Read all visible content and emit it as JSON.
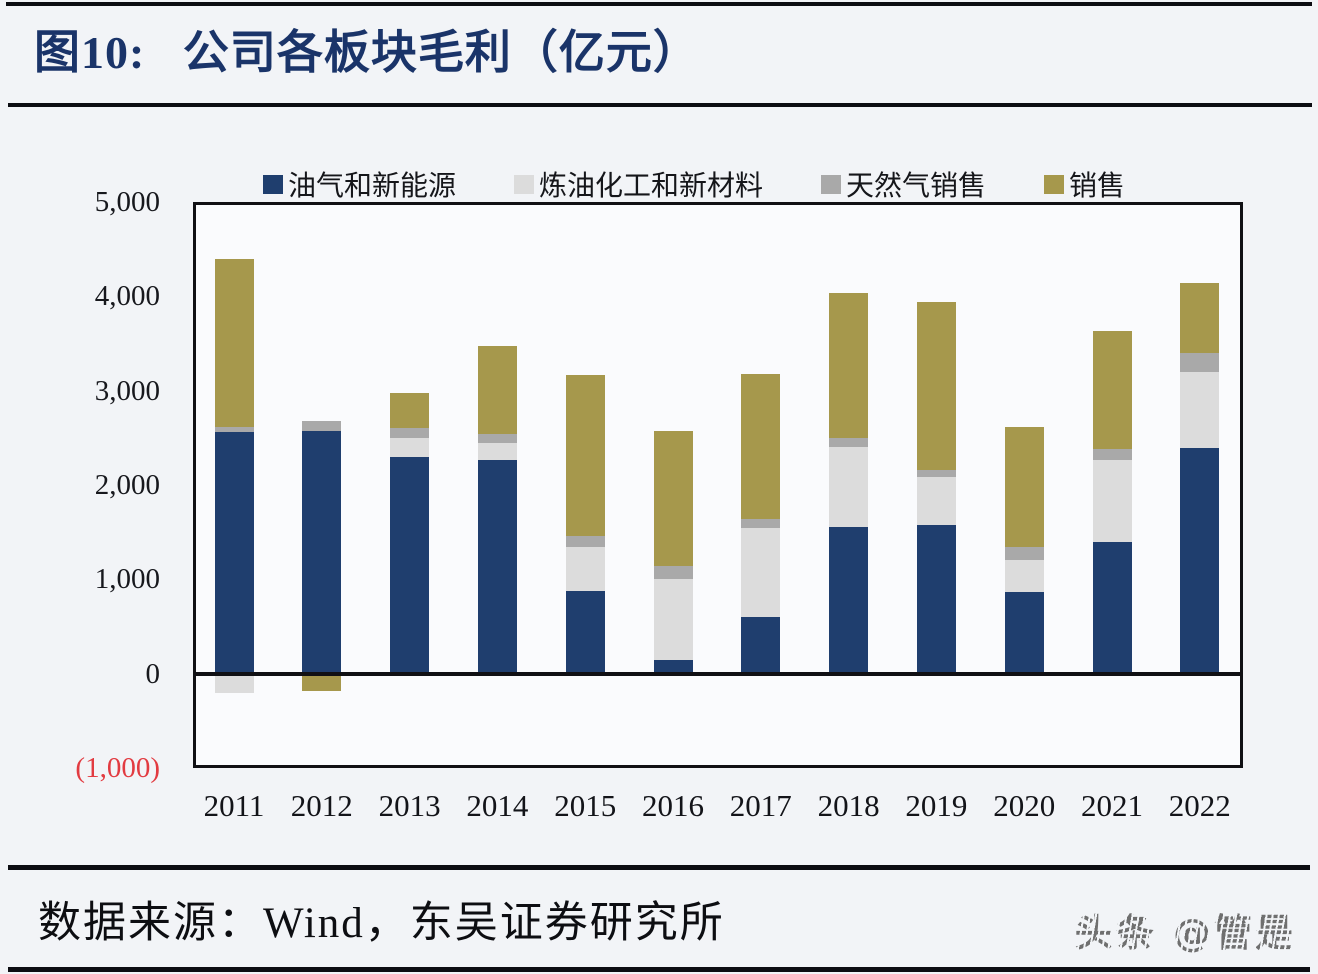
{
  "page": {
    "title": "图10:   公司各板块毛利（亿元）",
    "source_label": "数据来源：Wind，东吴证券研究所",
    "watermark": "头条 @管是"
  },
  "colors": {
    "title_navy": "#1a3469",
    "axis_black": "#101014",
    "negative_tick_red": "#e23b41",
    "page_background": "#f2f4f7",
    "watermark_gray": "#818181"
  },
  "chart_data": {
    "type": "bar",
    "stacked": true,
    "title": "公司各板块毛利（亿元）",
    "unit": "亿元",
    "grid": false,
    "legend_position": "top",
    "ylim": [
      -1000,
      5000
    ],
    "categories": [
      "2011",
      "2012",
      "2013",
      "2014",
      "2015",
      "2016",
      "2017",
      "2018",
      "2019",
      "2020",
      "2021",
      "2022"
    ],
    "series": [
      {
        "name": "油气和新能源",
        "color": "#1f3e6e",
        "textured": false,
        "values": [
          2560,
          2570,
          2300,
          2270,
          880,
          140,
          600,
          1560,
          1580,
          870,
          1400,
          2390
        ]
      },
      {
        "name": "炼油化工和新材料",
        "color": "#dcdcdc",
        "textured": true,
        "values": [
          -200,
          0,
          200,
          180,
          460,
          860,
          940,
          840,
          500,
          330,
          870,
          810
        ]
      },
      {
        "name": "天然气销售",
        "color": "#a9a9a9",
        "textured": false,
        "values": [
          50,
          110,
          100,
          90,
          120,
          140,
          100,
          100,
          80,
          140,
          110,
          200
        ]
      },
      {
        "name": "销售",
        "color": "#a6984c",
        "textured": false,
        "values": [
          1790,
          -180,
          380,
          930,
          1710,
          1430,
          1540,
          1540,
          1780,
          1270,
          1250,
          740
        ]
      }
    ],
    "y_ticks": [
      {
        "label": "5,000",
        "value": 5000,
        "negative": false
      },
      {
        "label": "4,000",
        "value": 4000,
        "negative": false
      },
      {
        "label": "3,000",
        "value": 3000,
        "negative": false
      },
      {
        "label": "2,000",
        "value": 2000,
        "negative": false
      },
      {
        "label": "1,000",
        "value": 1000,
        "negative": false
      },
      {
        "label": "0",
        "value": 0,
        "negative": false
      },
      {
        "label": "(1,000)",
        "value": -1000,
        "negative": true
      }
    ]
  }
}
